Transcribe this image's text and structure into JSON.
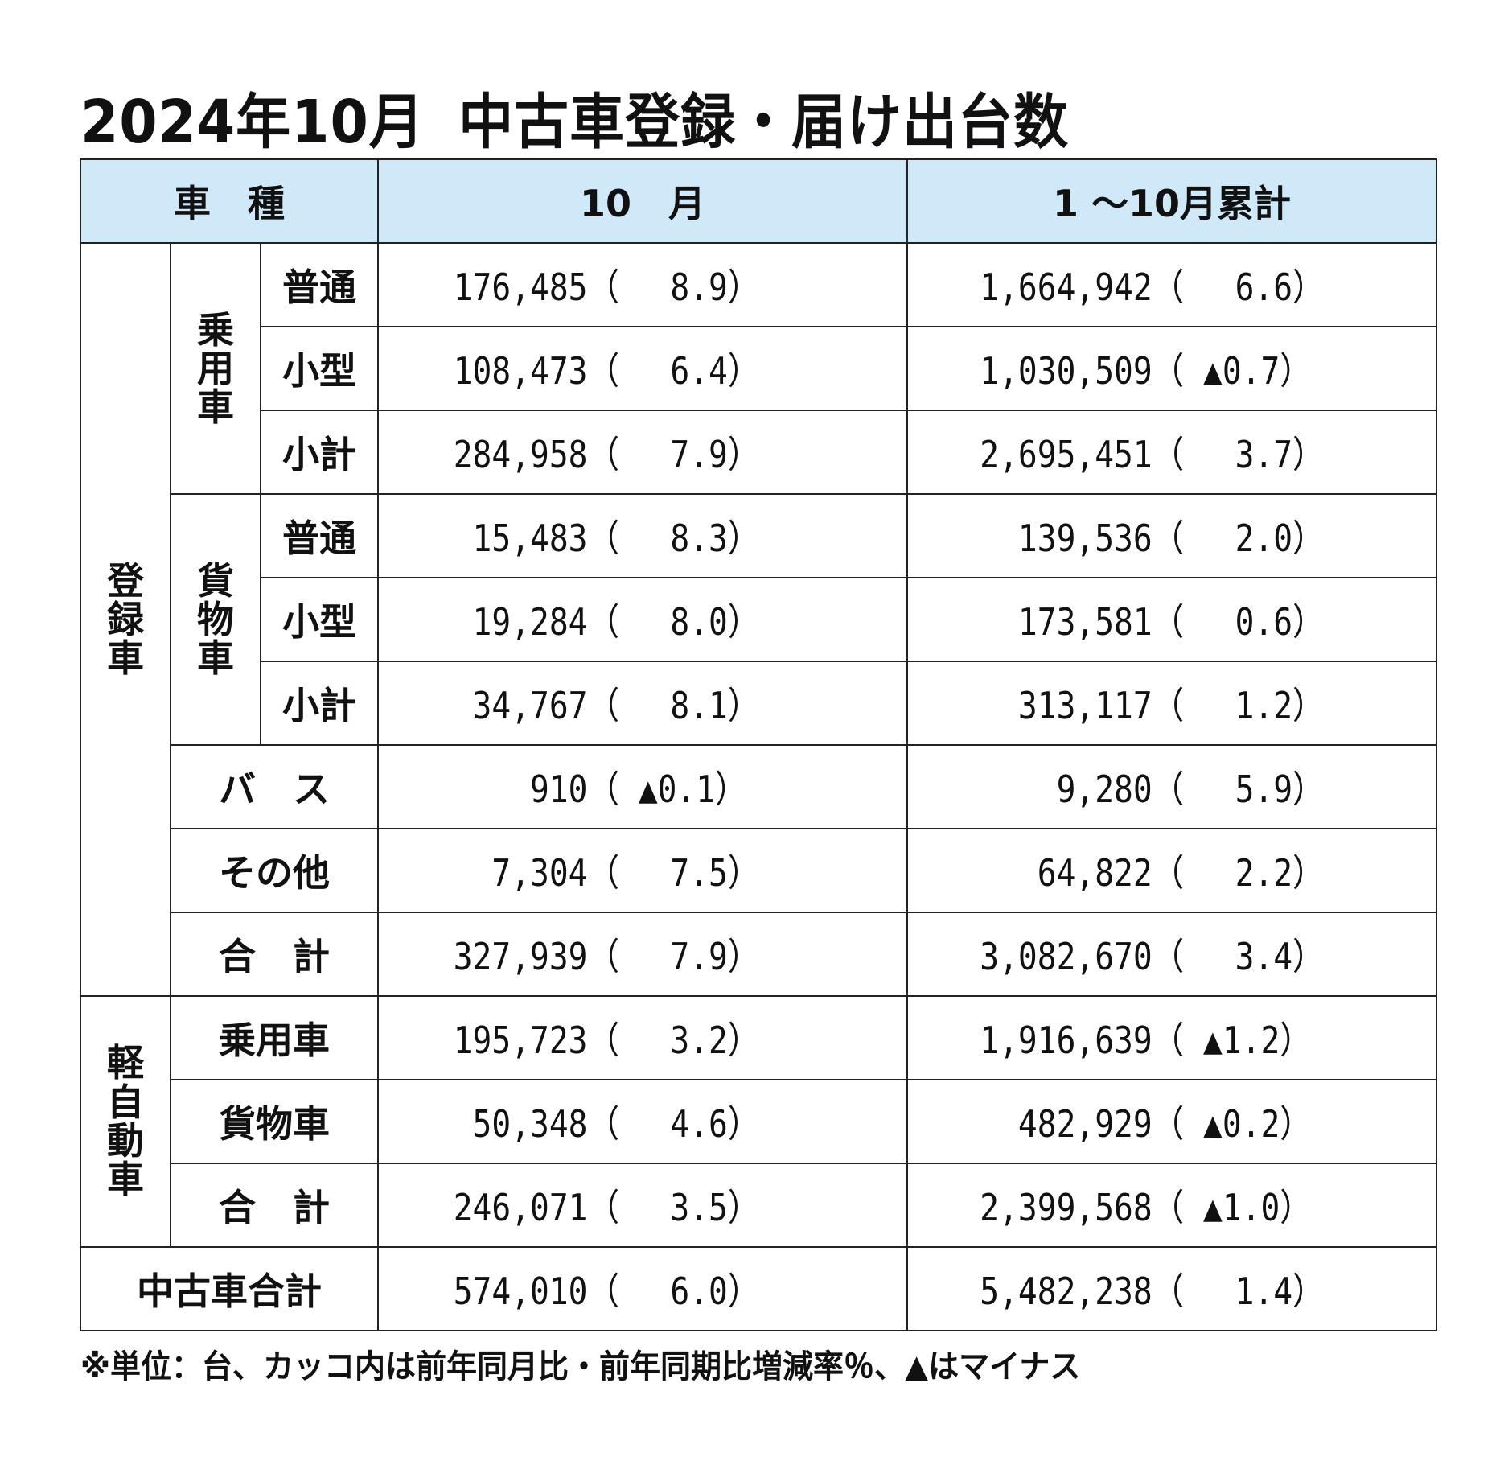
{
  "title": {
    "date": "2024年10月",
    "main": "中古車登録・届け出台数"
  },
  "header": {
    "col_type": "車　種",
    "col_month": "10　月",
    "col_cumulative": "1 ～10月累計"
  },
  "groups": {
    "registered": "登録車",
    "passenger": "乗用車",
    "cargo": "貨物車",
    "kei": "軽自動車"
  },
  "rows": {
    "reg_pass_normal": {
      "label": "普通",
      "month": "176,485（　 8.9）",
      "cum": "1,664,942（　 6.6）"
    },
    "reg_pass_small": {
      "label": "小型",
      "month": "108,473（　 6.4）",
      "cum": "1,030,509（ ▲0.7）"
    },
    "reg_pass_subtotal": {
      "label": "小計",
      "month": "284,958（　 7.9）",
      "cum": "2,695,451（　 3.7）"
    },
    "reg_cargo_normal": {
      "label": "普通",
      "month": " 15,483（　 8.3）",
      "cum": "  139,536（　 2.0）"
    },
    "reg_cargo_small": {
      "label": "小型",
      "month": " 19,284（　 8.0）",
      "cum": "  173,581（　 0.6）"
    },
    "reg_cargo_subtotal": {
      "label": "小計",
      "month": " 34,767（　 8.1）",
      "cum": "  313,117（　 1.2）"
    },
    "reg_bus": {
      "label": "バ　ス",
      "month": "    910（ ▲0.1）",
      "cum": "    9,280（　 5.9）"
    },
    "reg_other": {
      "label": "その他",
      "month": "  7,304（　 7.5）",
      "cum": "   64,822（　 2.2）"
    },
    "reg_total": {
      "label": "合　計",
      "month": "327,939（　 7.9）",
      "cum": "3,082,670（　 3.4）"
    },
    "kei_passenger": {
      "label": "乗用車",
      "month": "195,723（　 3.2）",
      "cum": "1,916,639（ ▲1.2）"
    },
    "kei_cargo": {
      "label": "貨物車",
      "month": " 50,348（　 4.6）",
      "cum": "  482,929（ ▲0.2）"
    },
    "kei_total": {
      "label": "合　計",
      "month": "246,071（　 3.5）",
      "cum": "2,399,568（ ▲1.0）"
    },
    "grand_total": {
      "label": "中古車合計",
      "month": "574,010（　 6.0）",
      "cum": "5,482,238（　 1.4）"
    }
  },
  "note": "※単位：台、カッコ内は前年同月比・前年同期比増減率％、▲はマイナス"
}
